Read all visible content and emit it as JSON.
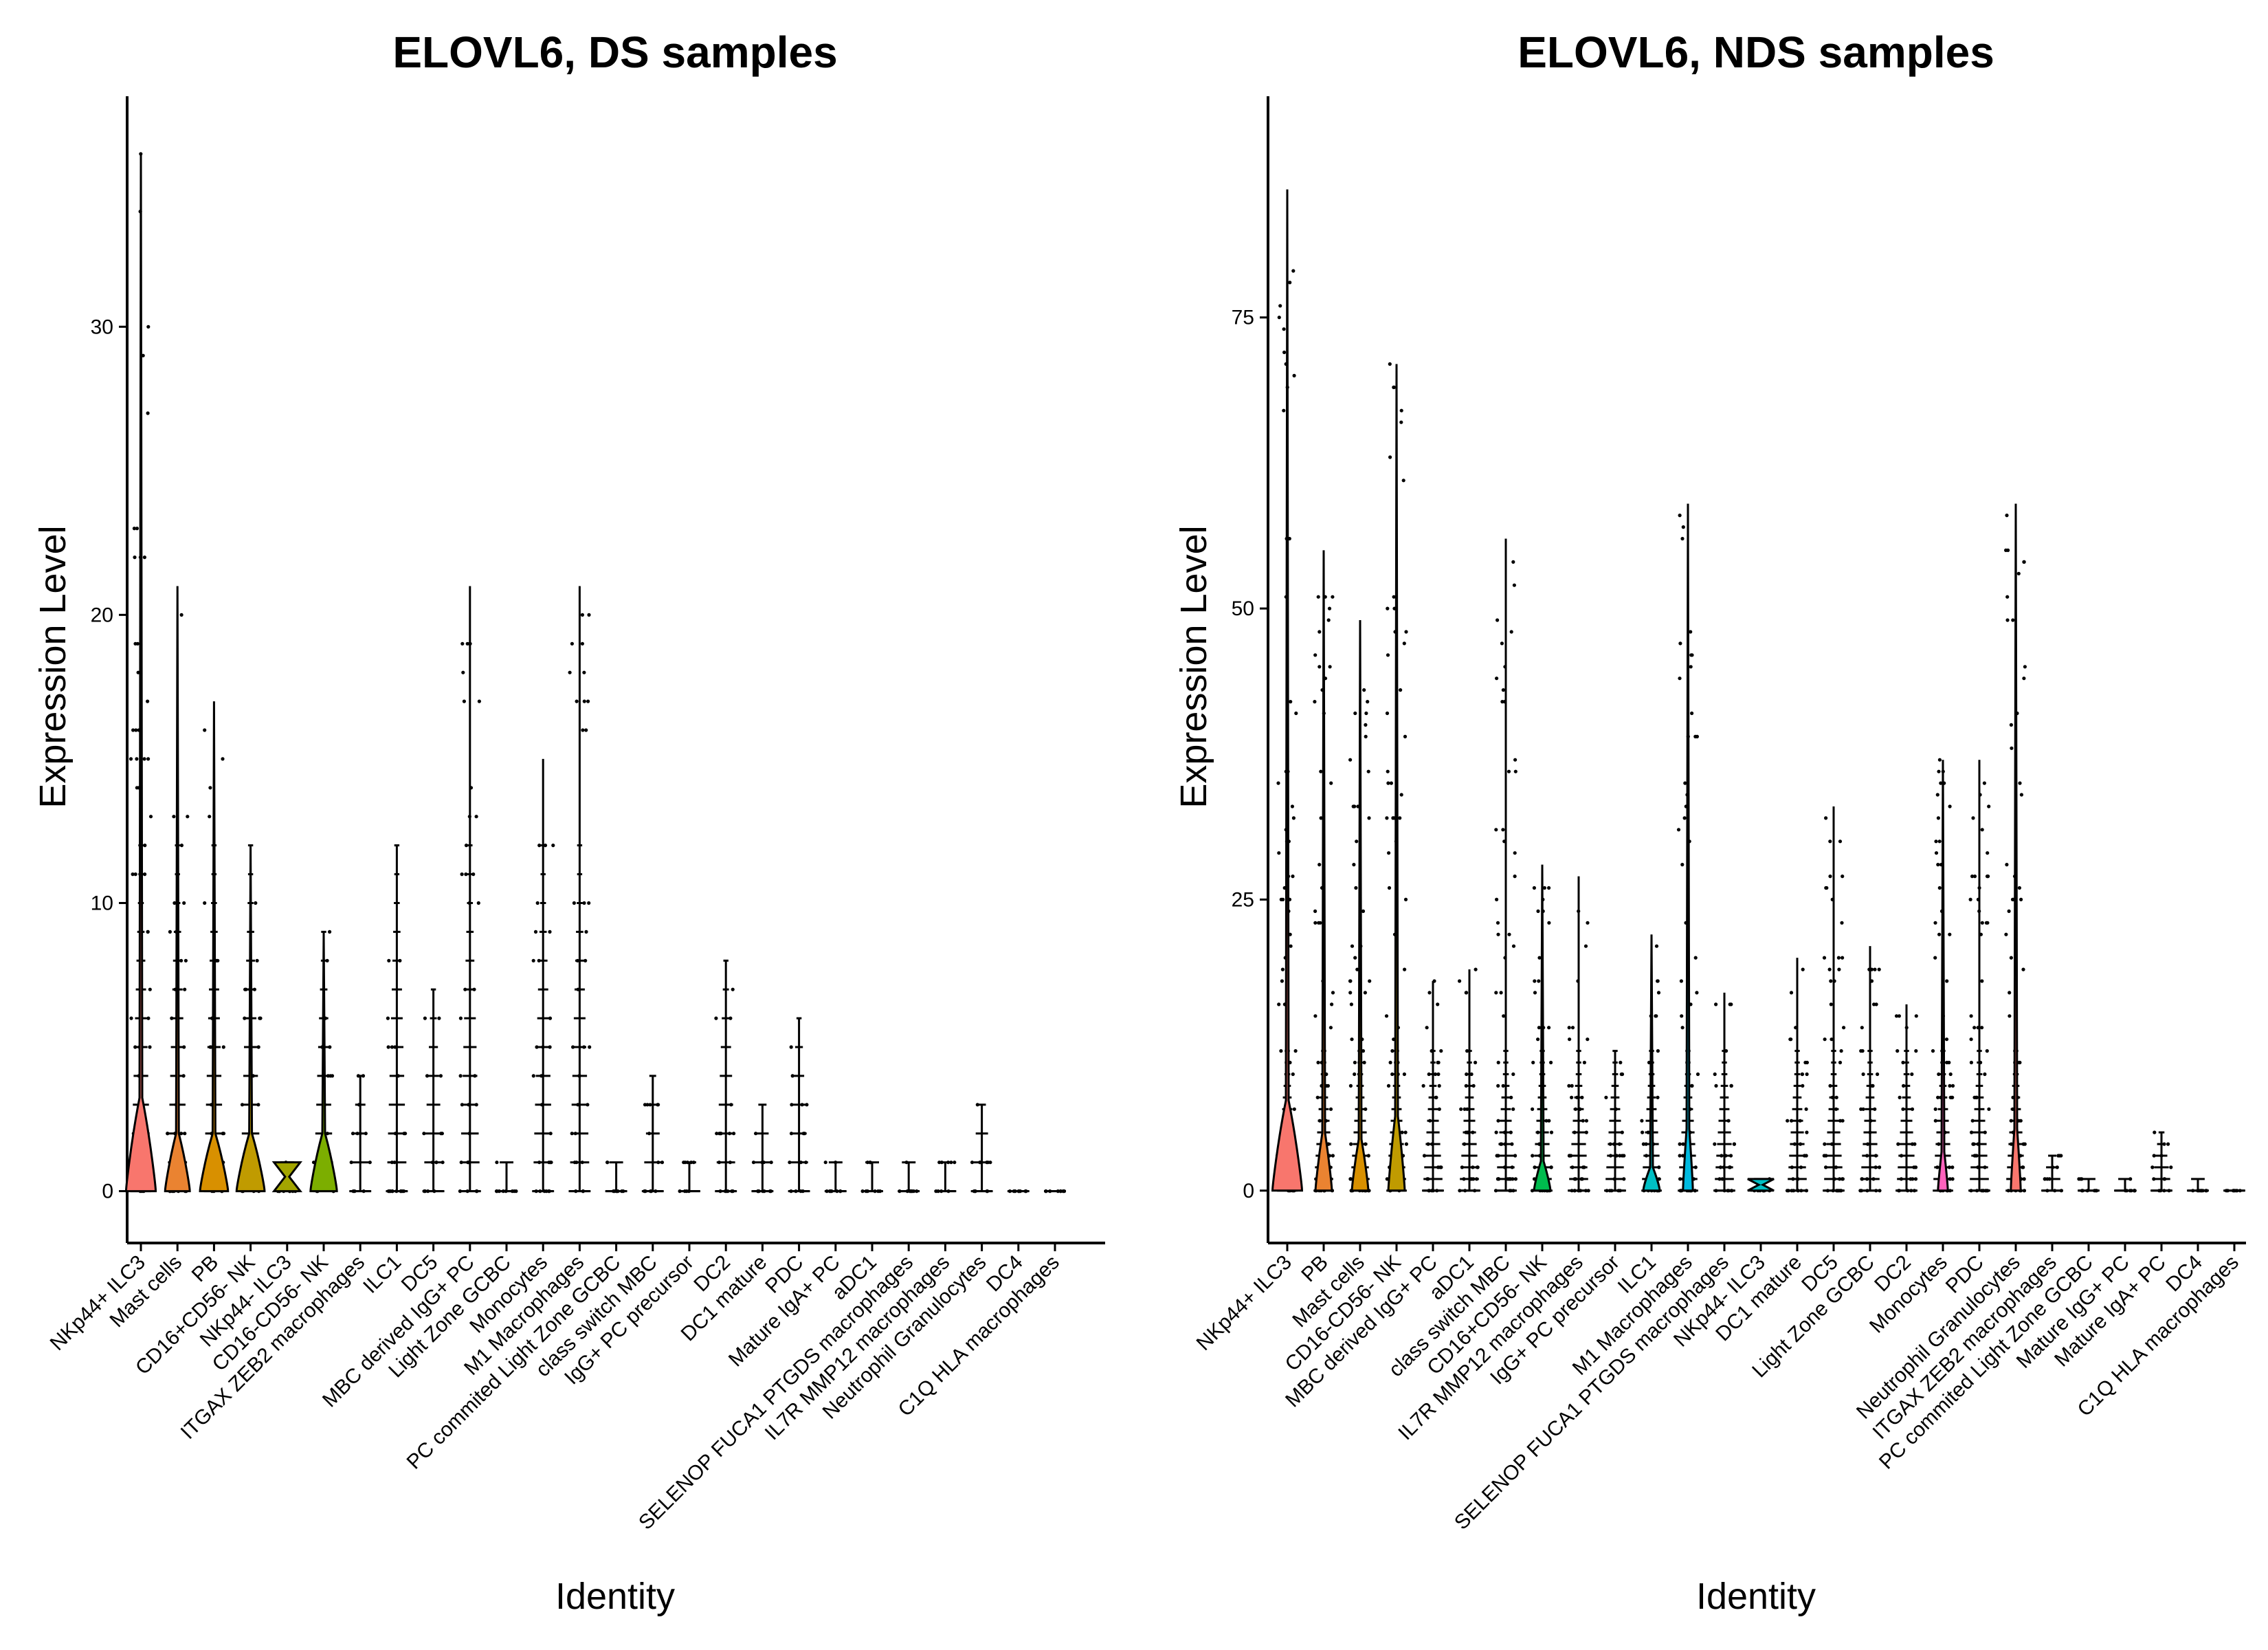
{
  "chart_data": [
    {
      "type": "violin",
      "title": "ELOVL6, DS samples",
      "xlabel": "Identity",
      "ylabel": "Expression Level",
      "ylim": [
        -1.8,
        38
      ],
      "yticks": [
        0,
        10,
        20,
        30
      ],
      "categories": [
        "NKp44+ ILC3",
        "Mast cells",
        "PB",
        "CD16+CD56- NK",
        "NKp44- ILC3",
        "CD16-CD56- NK",
        "ITGAX ZEB2 macrophages",
        "ILC1",
        "DC5",
        "MBC derived IgG+ PC",
        "Light Zone GCBC",
        "Monocytes",
        "M1 Macrophages",
        "PC commited Light Zone GCBC",
        "class switch MBC",
        "IgG+ PC precursor",
        "DC2",
        "DC1 mature",
        "PDC",
        "Mature IgA+ PC",
        "aDC1",
        "SELENOP FUCA1 PTGDS macrophages",
        "IL7R MMP12 macrophages",
        "Neutrophil Granulocytes",
        "DC4",
        "C1Q HLA macrophages"
      ],
      "max_values": [
        36,
        21,
        17,
        12,
        1,
        9,
        4,
        12,
        7,
        21,
        1,
        15,
        21,
        1,
        4,
        1,
        8,
        3,
        6,
        1,
        1,
        1,
        1,
        3,
        0,
        0
      ],
      "fill_colors": [
        "#F8766D",
        "#EA8331",
        "#D89000",
        "#C09B00",
        "#A3A500",
        "#7CAE00",
        "#39B600",
        "#00BB4E",
        "#00BF7D",
        "#00C1A3",
        "#00BFC4",
        "#00BAE0",
        "#00B0F6",
        "#35A2FF",
        "#9590FF",
        "#C77CFF",
        "#E76BF3",
        "#FA62DB",
        "#FF62BC",
        "#FF6C91",
        "#F8766D",
        "#EA8331",
        "#D89000",
        "#C09B00",
        "#A3A500",
        "#7CAE00"
      ],
      "violin_widths": [
        0.9,
        0.75,
        0.85,
        0.85,
        0.8,
        0.8,
        0.0,
        0.0,
        0.0,
        0.0,
        0.0,
        0.0,
        0.0,
        0.0,
        0.0,
        0.0,
        0.0,
        0.0,
        0.0,
        0.0,
        0.0,
        0.0,
        0.0,
        0.0,
        0.0,
        0.0
      ]
    },
    {
      "type": "violin",
      "title": "ELOVL6, NDS samples",
      "xlabel": "Identity",
      "ylabel": "Expression Level",
      "ylim": [
        -4.5,
        94
      ],
      "yticks": [
        0,
        25,
        50,
        75
      ],
      "categories": [
        "NKp44+ ILC3",
        "PB",
        "Mast cells",
        "CD16-CD56- NK",
        "MBC derived IgG+ PC",
        "aDC1",
        "class switch MBC",
        "CD16+CD56- NK",
        "IL7R MMP12 macrophages",
        "IgG+ PC precursor",
        "ILC1",
        "M1 Macrophages",
        "SELENOP FUCA1 PTGDS macrophages",
        "NKp44- ILC3",
        "DC1 mature",
        "DC5",
        "Light Zone GCBC",
        "DC2",
        "Monocytes",
        "PDC",
        "Neutrophil Granulocytes",
        "ITGAX ZEB2 macrophages",
        "PC commited Light Zone GCBC",
        "Mature IgG+ PC",
        "Mature IgA+ PC",
        "DC4",
        "C1Q HLA macrophages"
      ],
      "max_values": [
        86,
        55,
        49,
        71,
        18,
        19,
        56,
        28,
        27,
        12,
        22,
        59,
        17,
        1,
        20,
        33,
        21,
        16,
        37,
        37,
        59,
        3,
        1,
        1,
        5,
        1,
        0
      ],
      "fill_colors": [
        "#F8766D",
        "#EA8331",
        "#D89000",
        "#C09B00",
        "#A3A500",
        "#7CAE00",
        "#39B600",
        "#00BB4E",
        "#00BF7D",
        "#00C1A3",
        "#00BFC4",
        "#00BAE0",
        "#00B0F6",
        "#00BFC4",
        "#9590FF",
        "#C77CFF",
        "#E76BF3",
        "#FA62DB",
        "#FF62BC",
        "#FF6C91",
        "#F8766D",
        "#EA8331",
        "#D89000",
        "#C09B00",
        "#A3A500",
        "#7CAE00",
        "#39B600"
      ],
      "violin_widths": [
        0.9,
        0.5,
        0.5,
        0.5,
        0.0,
        0.0,
        0.0,
        0.5,
        0.0,
        0.0,
        0.5,
        0.3,
        0.0,
        0.8,
        0.0,
        0.0,
        0.0,
        0.0,
        0.3,
        0.0,
        0.3,
        0.0,
        0.0,
        0.0,
        0.0,
        0.0,
        0.0
      ]
    }
  ]
}
